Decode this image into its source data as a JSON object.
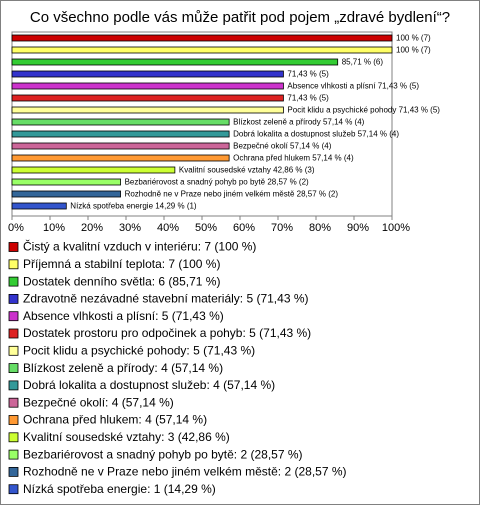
{
  "chart_data": {
    "type": "barh",
    "title": "Co všechno podle vás může patřit pod pojem „zdravé bydlení“?",
    "categories": [
      "Čistý a kvalitní vzduch v interiéru: 7 (100 %)",
      "Příjemná a stabilní teplota: 7 (100 %)",
      "Dostatek denního světla: 6 (85,71 %)",
      "Zdravotně nezávadné stavební materiály: 5 (71,43 %)",
      "Absence vlhkosti a plísní: 5 (71,43 %)",
      "Dostatek prostoru pro odpočinek a pohyb: 5 (71,43 %)",
      "Pocit klidu a psychické pohody: 5 (71,43 %)",
      "Blízkost zeleně a přírody: 4 (57,14 %)",
      "Dobrá lokalita a dostupnost služeb: 4 (57,14 %)",
      "Bezpečné okolí: 4 (57,14 %)",
      "Ochrana před hlukem: 4 (57,14 %)",
      "Kvalitní sousedské vztahy: 3 (42,86 %)",
      "Bezbariérovost a snadný pohyb po bytě: 2 (28,57 %)",
      "Rozhodně ne v Praze nebo jiném velkém městě: 2 (28,57 %)",
      "Nízká spotřeba energie: 1 (14,29 %)"
    ],
    "values": [
      100,
      100,
      85.71,
      71.43,
      71.43,
      71.43,
      71.43,
      57.14,
      57.14,
      57.14,
      57.14,
      42.86,
      28.57,
      28.57,
      14.29
    ],
    "value_labels": [
      "100 % (7)",
      "100 % (7)",
      "85,71 % (6)",
      "71,43 % (5)",
      "Absence vlhkosti a plísní 71,43 % (5)",
      "71,43 % (5)",
      "Pocit klidu a psychické pohody 71,43 % (5)",
      "Blízkost zeleně a přírody 57,14 % (4)",
      "Dobrá lokalita a dostupnost služeb 57,14 % (4)",
      "Bezpečné okolí 57,14 % (4)",
      "Ochrana před hlukem 57,14 % (4)",
      "Kvalitní sousedské vztahy 42,86 % (3)",
      "Bezbariérovost a snadný pohyb po bytě 28,57 % (2)",
      "Rozhodně ne v Praze nebo jiném velkém městě 28,57 % (2)",
      "Nízká spotřeba energie 14,29 % (1)"
    ],
    "colors": [
      "#cc0000",
      "#ffff66",
      "#33cc33",
      "#3333cc",
      "#cc33cc",
      "#dd2222",
      "#ffff99",
      "#66dd66",
      "#339999",
      "#cc6699",
      "#ff9933",
      "#ccff33",
      "#99ff66",
      "#336699",
      "#3355cc"
    ],
    "xlim": [
      0,
      100
    ],
    "xticks": [
      {
        "value": 0,
        "label": "0%"
      },
      {
        "value": 10,
        "label": "10%"
      },
      {
        "value": 20,
        "label": "20%"
      },
      {
        "value": 30,
        "label": "30%"
      },
      {
        "value": 40,
        "label": "40%"
      },
      {
        "value": 50,
        "label": "50%"
      },
      {
        "value": 60,
        "label": "60%"
      },
      {
        "value": 70,
        "label": "70%"
      },
      {
        "value": 80,
        "label": "80%"
      },
      {
        "value": 90,
        "label": "90%"
      },
      {
        "value": 100,
        "label": "100%"
      }
    ]
  }
}
